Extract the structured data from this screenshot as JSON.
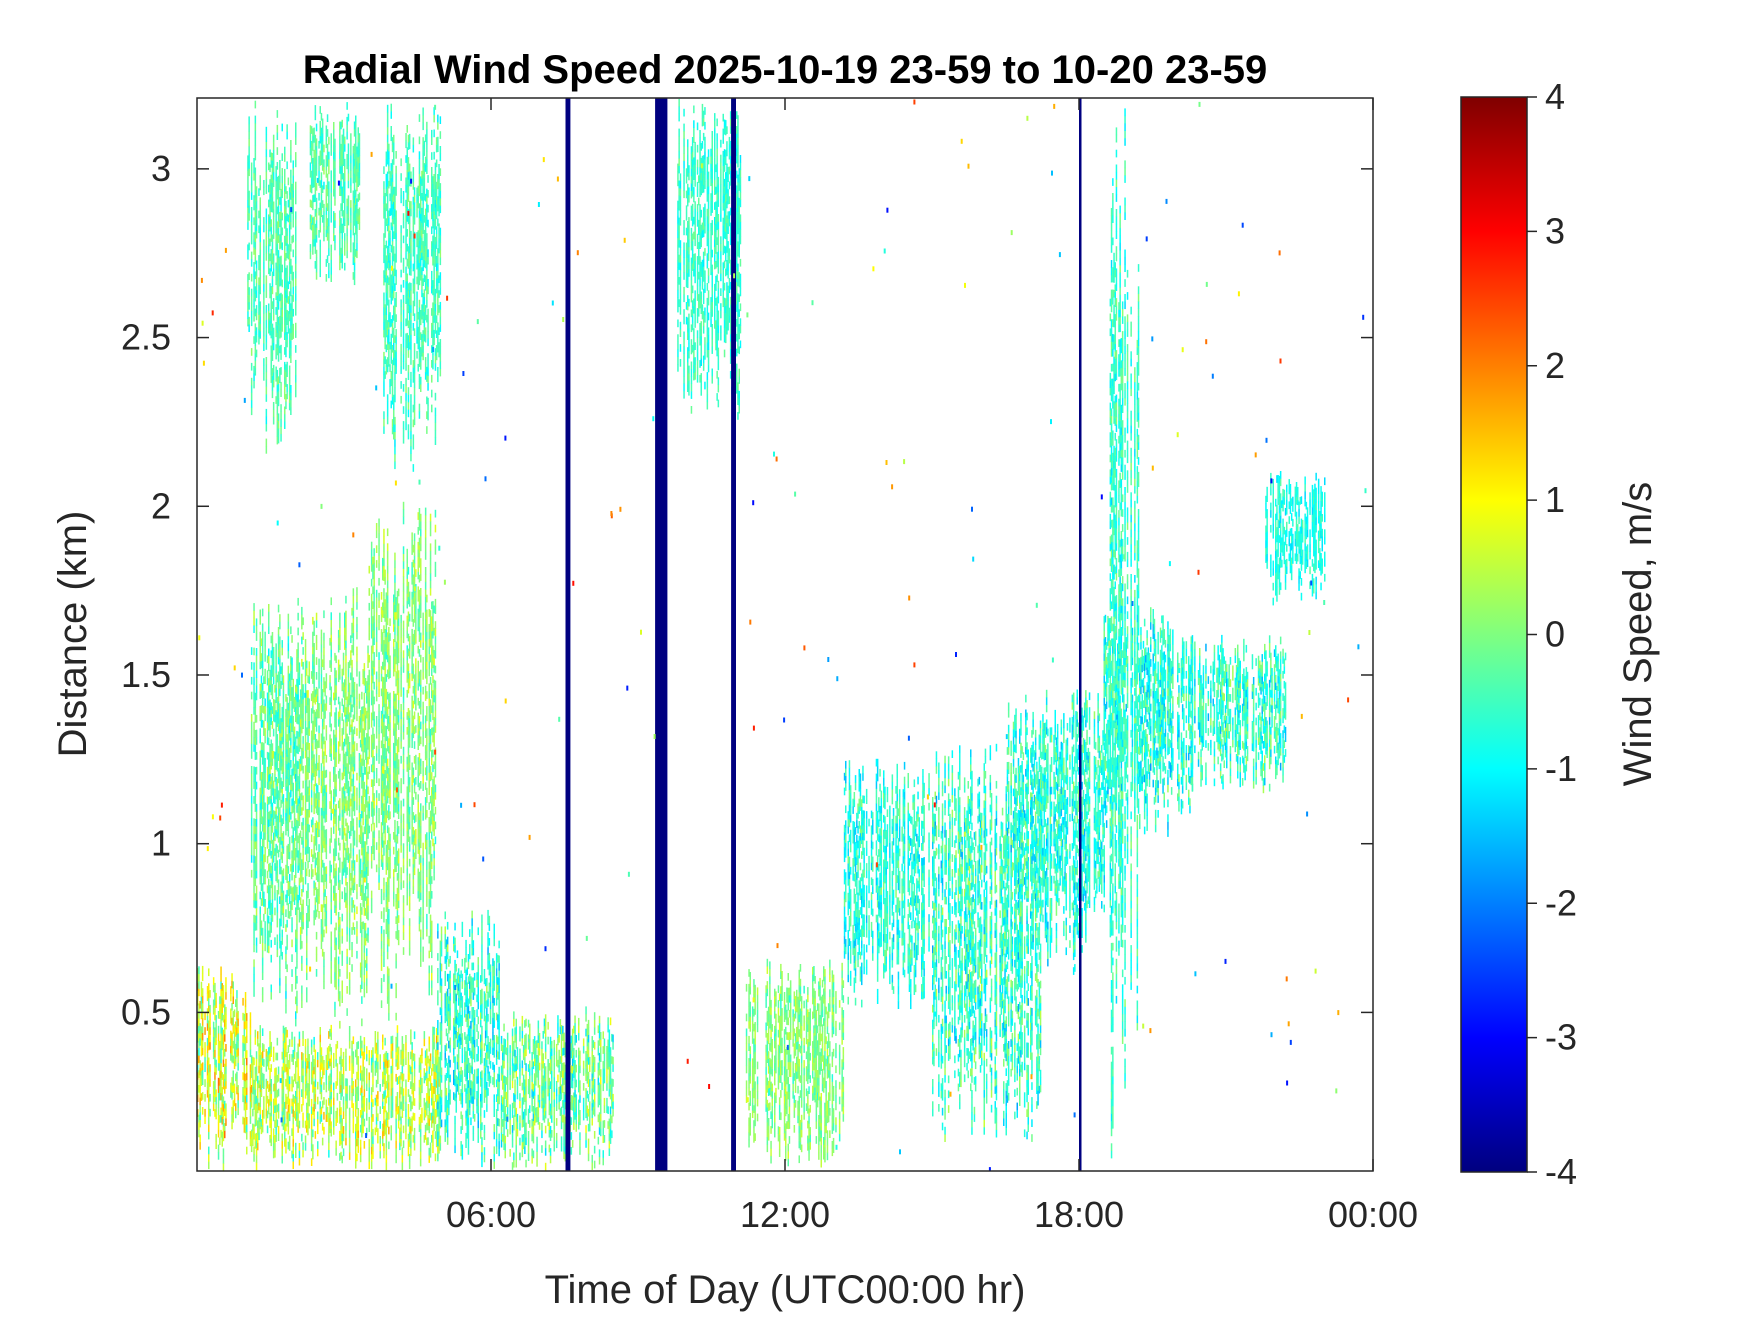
{
  "chart_data": {
    "type": "heatmap",
    "title": "Radial Wind Speed 2025-10-19 23-59 to 10-20 23-59",
    "xlabel": "Time of Day (UTC00:00 hr)",
    "ylabel": "Distance (km)",
    "xlim_hours": [
      0,
      24
    ],
    "ylim_km": [
      0.03,
      3.21
    ],
    "x_ticks": [
      {
        "value": 6,
        "label": "06:00"
      },
      {
        "value": 12,
        "label": "12:00"
      },
      {
        "value": 18,
        "label": "18:00"
      },
      {
        "value": 24,
        "label": "00:00"
      }
    ],
    "y_ticks": [
      {
        "value": 0.5,
        "label": "0.5"
      },
      {
        "value": 1,
        "label": "1"
      },
      {
        "value": 1.5,
        "label": "1.5"
      },
      {
        "value": 2,
        "label": "2"
      },
      {
        "value": 2.5,
        "label": "2.5"
      },
      {
        "value": 3,
        "label": "3"
      }
    ],
    "colorbar": {
      "label": "Wind Speed, m/s",
      "colormap": "jet",
      "range": [
        -4,
        4
      ],
      "ticks": [
        {
          "value": 4,
          "label": "4"
        },
        {
          "value": 3,
          "label": "3"
        },
        {
          "value": 2,
          "label": "2"
        },
        {
          "value": 1,
          "label": "1"
        },
        {
          "value": 0,
          "label": "0"
        },
        {
          "value": -1,
          "label": "-1"
        },
        {
          "value": -2,
          "label": "-2"
        },
        {
          "value": -3,
          "label": "-3"
        },
        {
          "value": -4,
          "label": "-4"
        }
      ]
    },
    "grid": false,
    "regions": [
      {
        "t0": 0.0,
        "t1": 1.1,
        "d0": 0.03,
        "d1": 0.62,
        "v": 0.6,
        "spread": 1.6
      },
      {
        "t0": 1.1,
        "t1": 5.0,
        "d0": 0.03,
        "d1": 0.45,
        "v": 0.4,
        "spread": 1.4
      },
      {
        "t0": 1.1,
        "t1": 2.1,
        "d0": 0.45,
        "d1": 1.75,
        "v": -0.3,
        "spread": 1.0
      },
      {
        "t0": 2.1,
        "t1": 3.5,
        "d0": 0.45,
        "d1": 1.75,
        "v": 0.0,
        "spread": 0.9
      },
      {
        "t0": 3.5,
        "t1": 4.9,
        "d0": 0.45,
        "d1": 2.05,
        "v": 0.0,
        "spread": 0.9
      },
      {
        "t0": 4.9,
        "t1": 6.2,
        "d0": 0.03,
        "d1": 0.8,
        "v": -0.6,
        "spread": 1.2
      },
      {
        "t0": 6.2,
        "t1": 8.5,
        "d0": 0.03,
        "d1": 0.5,
        "v": -0.2,
        "spread": 1.3
      },
      {
        "t0": 1.0,
        "t1": 2.0,
        "d0": 2.15,
        "d1": 3.2,
        "v": -0.4,
        "spread": 0.7
      },
      {
        "t0": 2.3,
        "t1": 3.3,
        "d0": 2.65,
        "d1": 3.2,
        "v": -0.4,
        "spread": 0.7
      },
      {
        "t0": 3.8,
        "t1": 5.0,
        "d0": 2.1,
        "d1": 3.2,
        "v": -0.5,
        "spread": 0.7
      },
      {
        "t0": 11.2,
        "t1": 13.2,
        "d0": 0.03,
        "d1": 0.65,
        "v": 0.0,
        "spread": 0.8
      },
      {
        "t0": 13.2,
        "t1": 15.0,
        "d0": 0.5,
        "d1": 1.25,
        "v": -0.7,
        "spread": 0.9
      },
      {
        "t0": 15.0,
        "t1": 17.2,
        "d0": 0.1,
        "d1": 1.3,
        "v": -0.6,
        "spread": 1.2
      },
      {
        "t0": 16.5,
        "t1": 18.5,
        "d0": 0.6,
        "d1": 1.45,
        "v": -0.7,
        "spread": 1.0
      },
      {
        "t0": 18.5,
        "t1": 20.3,
        "d0": 1.0,
        "d1": 1.7,
        "v": -0.7,
        "spread": 1.1
      },
      {
        "t0": 20.3,
        "t1": 22.2,
        "d0": 1.15,
        "d1": 1.6,
        "v": -0.6,
        "spread": 1.1
      },
      {
        "t0": 18.6,
        "t1": 19.2,
        "d0": 0.03,
        "d1": 3.2,
        "v": -0.6,
        "spread": 0.8
      },
      {
        "t0": 9.8,
        "t1": 11.1,
        "d0": 2.25,
        "d1": 3.2,
        "v": -0.6,
        "spread": 0.6
      },
      {
        "t0": 21.8,
        "t1": 23.0,
        "d0": 1.7,
        "d1": 2.1,
        "v": -0.8,
        "spread": 0.6
      }
    ],
    "bands": [
      {
        "t0": 7.52,
        "t1": 7.62,
        "v": -4
      },
      {
        "t0": 9.35,
        "t1": 9.6,
        "v": -4
      },
      {
        "t0": 10.9,
        "t1": 11.0,
        "v": -4
      },
      {
        "t0": 18.0,
        "t1": 18.05,
        "v": -4
      }
    ]
  }
}
